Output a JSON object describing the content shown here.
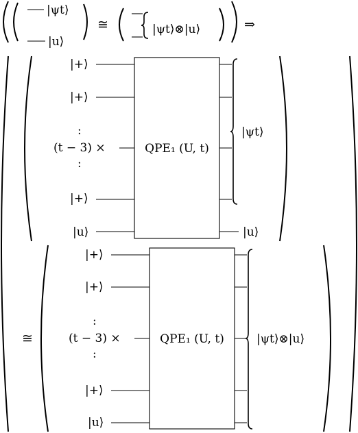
{
  "header": {
    "psi_ket": "|ψt⟩",
    "u_ket": "|u⟩",
    "congruent": "≅",
    "tensor_state": "|ψt⟩⊗|u⟩",
    "implies": "⇒"
  },
  "circuit1": {
    "inputs": [
      "|+⟩",
      "|+⟩",
      "(t − 3) ×",
      "|+⟩",
      "|u⟩"
    ],
    "dots": ":",
    "gate_label": "QPE₁ (U, t)",
    "output_state": "|ψt⟩",
    "output_u": "|u⟩"
  },
  "circuit2": {
    "prefix": "≅",
    "inputs": [
      "|+⟩",
      "|+⟩",
      "(t − 3) ×",
      "|+⟩",
      "|u⟩"
    ],
    "dots": ":",
    "gate_label": "QPE₁ (U, t)",
    "output_state": "|ψt⟩⊗|u⟩"
  }
}
